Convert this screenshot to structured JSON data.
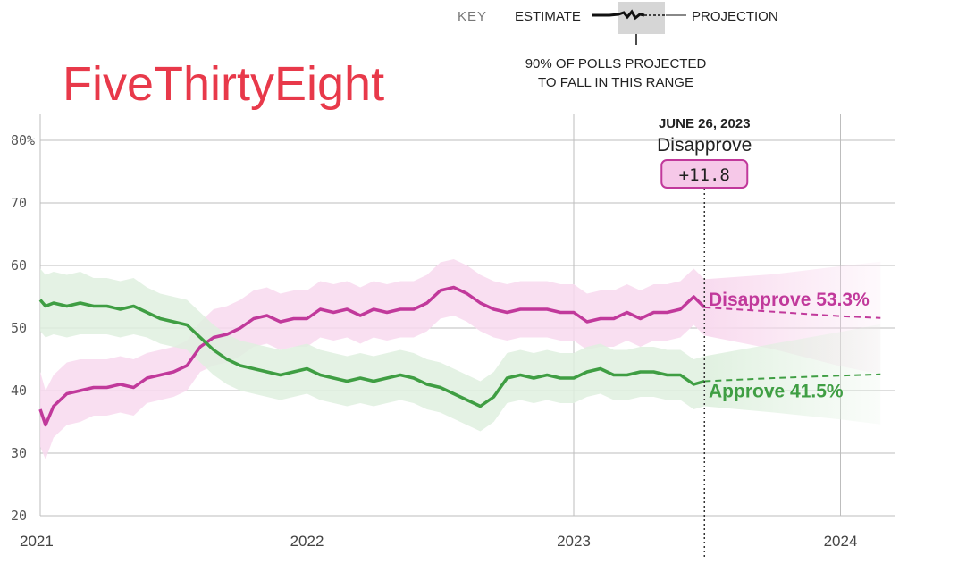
{
  "brand": {
    "name": "FiveThirtyEight",
    "color": "#e8394a"
  },
  "key": {
    "title": "KEY",
    "estimate_label": "ESTIMATE",
    "projection_label": "PROJECTION",
    "range_line1": "90% OF POLLS PROJECTED",
    "range_line2": "TO FALL IN THIS RANGE"
  },
  "marker": {
    "date_label": "JUNE 26, 2023",
    "series_label": "Disapprove",
    "value_label": "+11.8",
    "x": 2023.49
  },
  "colors": {
    "approve": "#3f9e43",
    "disapprove": "#c1399b",
    "approve_band": "#dff0df",
    "disapprove_band": "#f8d9ee",
    "badge_fill": "#f6c8e8",
    "grid": "#bdbdbd"
  },
  "chart_data": {
    "type": "line",
    "x_ticks": [
      {
        "value": 2021,
        "label": "2021"
      },
      {
        "value": 2022,
        "label": "2022"
      },
      {
        "value": 2023,
        "label": "2023"
      },
      {
        "value": 2024,
        "label": "2024"
      }
    ],
    "y_ticks": [
      {
        "value": 80,
        "label": "80%"
      },
      {
        "value": 70,
        "label": "70"
      },
      {
        "value": 60,
        "label": "60"
      },
      {
        "value": 50,
        "label": "50"
      },
      {
        "value": 40,
        "label": "40"
      },
      {
        "value": 30,
        "label": "30"
      },
      {
        "value": 20,
        "label": "20"
      }
    ],
    "xlim": [
      2021,
      2024.2
    ],
    "ylim": [
      20,
      82
    ],
    "grid": true,
    "series": [
      {
        "name": "Disapprove",
        "end_label": "Disapprove 53.3%",
        "x": [
          2021.0,
          2021.02,
          2021.05,
          2021.1,
          2021.15,
          2021.2,
          2021.25,
          2021.3,
          2021.35,
          2021.4,
          2021.45,
          2021.5,
          2021.55,
          2021.6,
          2021.65,
          2021.7,
          2021.75,
          2021.8,
          2021.85,
          2021.9,
          2021.95,
          2022.0,
          2022.05,
          2022.1,
          2022.15,
          2022.2,
          2022.25,
          2022.3,
          2022.35,
          2022.4,
          2022.45,
          2022.5,
          2022.55,
          2022.6,
          2022.65,
          2022.7,
          2022.75,
          2022.8,
          2022.85,
          2022.9,
          2022.95,
          2023.0,
          2023.05,
          2023.1,
          2023.15,
          2023.2,
          2023.25,
          2023.3,
          2023.35,
          2023.4,
          2023.45,
          2023.49
        ],
        "y": [
          37,
          34.5,
          37.5,
          39.5,
          40,
          40.5,
          40.5,
          41,
          40.5,
          42,
          42.5,
          43,
          44,
          47,
          48.5,
          49,
          50,
          51.5,
          52,
          51,
          51.5,
          51.5,
          53,
          52.5,
          53,
          52,
          53,
          52.5,
          53,
          53,
          54,
          56,
          56.5,
          55.5,
          54,
          53,
          52.5,
          53,
          53,
          53,
          52.5,
          52.5,
          51,
          51.5,
          51.5,
          52.5,
          51.5,
          52.5,
          52.5,
          53,
          55,
          53.3
        ],
        "band_halfwidth": [
          6,
          5.5,
          5,
          5,
          5,
          4.5,
          4.5,
          4.5,
          4.5,
          4,
          4,
          4,
          4,
          4,
          4.5,
          4.5,
          4.5,
          4.5,
          4.5,
          4.5,
          4.5,
          4.5,
          4.5,
          4.5,
          4.5,
          4.5,
          4.5,
          4.5,
          4.5,
          4.5,
          4.5,
          4.5,
          4.5,
          4.5,
          4.5,
          4.5,
          4.5,
          4.5,
          4.5,
          4.5,
          4.5,
          4.5,
          4.5,
          4.5,
          4.5,
          4.5,
          4.5,
          4.5,
          4.5,
          4.5,
          4.5,
          4.5
        ],
        "projection": {
          "x": [
            2023.49,
            2023.75,
            2024.0,
            2024.15
          ],
          "y": [
            53.3,
            52.6,
            51.9,
            51.6
          ],
          "band_halfwidth": [
            4.5,
            6,
            8,
            9
          ]
        }
      },
      {
        "name": "Approve",
        "end_label": "Approve 41.5%",
        "x": [
          2021.0,
          2021.02,
          2021.05,
          2021.1,
          2021.15,
          2021.2,
          2021.25,
          2021.3,
          2021.35,
          2021.4,
          2021.45,
          2021.5,
          2021.55,
          2021.6,
          2021.65,
          2021.7,
          2021.75,
          2021.8,
          2021.85,
          2021.9,
          2021.95,
          2022.0,
          2022.05,
          2022.1,
          2022.15,
          2022.2,
          2022.25,
          2022.3,
          2022.35,
          2022.4,
          2022.45,
          2022.5,
          2022.55,
          2022.6,
          2022.65,
          2022.7,
          2022.75,
          2022.8,
          2022.85,
          2022.9,
          2022.95,
          2023.0,
          2023.05,
          2023.1,
          2023.15,
          2023.2,
          2023.25,
          2023.3,
          2023.35,
          2023.4,
          2023.45,
          2023.49
        ],
        "y": [
          54.5,
          53.5,
          54,
          53.5,
          54,
          53.5,
          53.5,
          53,
          53.5,
          52.5,
          51.5,
          51,
          50.5,
          48.5,
          46.5,
          45,
          44,
          43.5,
          43,
          42.5,
          43,
          43.5,
          42.5,
          42,
          41.5,
          42,
          41.5,
          42,
          42.5,
          42,
          41,
          40.5,
          39.5,
          38.5,
          37.5,
          39,
          42,
          42.5,
          42,
          42.5,
          42,
          42,
          43,
          43.5,
          42.5,
          42.5,
          43,
          43,
          42.5,
          42.5,
          41,
          41.5
        ],
        "band_halfwidth": [
          5,
          5,
          5,
          5,
          5,
          4.5,
          4.5,
          4.5,
          4.5,
          4,
          4,
          4,
          4,
          4,
          4,
          4,
          4,
          4,
          4,
          4,
          4,
          4,
          4,
          4,
          4,
          4,
          4,
          4,
          4,
          4,
          4,
          4,
          4,
          4,
          4,
          4,
          4,
          4,
          4,
          4,
          4,
          4,
          4,
          4,
          4,
          4,
          4,
          4,
          4,
          4,
          4,
          4
        ],
        "projection": {
          "x": [
            2023.49,
            2023.75,
            2024.0,
            2024.15
          ],
          "y": [
            41.5,
            42,
            42.4,
            42.6
          ],
          "band_halfwidth": [
            4,
            5.5,
            7,
            8
          ]
        }
      }
    ]
  }
}
